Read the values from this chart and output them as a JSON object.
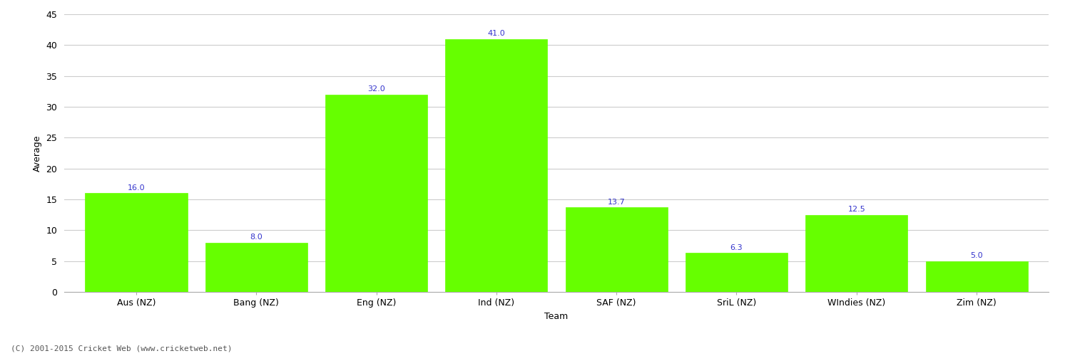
{
  "categories": [
    "Aus (NZ)",
    "Bang (NZ)",
    "Eng (NZ)",
    "Ind (NZ)",
    "SAF (NZ)",
    "SriL (NZ)",
    "WIndies (NZ)",
    "Zim (NZ)"
  ],
  "values": [
    16.0,
    8.0,
    32.0,
    41.0,
    13.7,
    6.3,
    12.5,
    5.0
  ],
  "bar_color": "#66ff00",
  "bar_edge_color": "#66ff00",
  "label_color": "#3333cc",
  "xlabel": "Team",
  "ylabel": "Average",
  "ylim": [
    0,
    45
  ],
  "yticks": [
    0,
    5,
    10,
    15,
    20,
    25,
    30,
    35,
    40,
    45
  ],
  "background_color": "#ffffff",
  "grid_color": "#cccccc",
  "footer": "(C) 2001-2015 Cricket Web (www.cricketweb.net)",
  "label_fontsize": 8,
  "axis_fontsize": 9,
  "footer_fontsize": 8,
  "bar_width": 0.85
}
